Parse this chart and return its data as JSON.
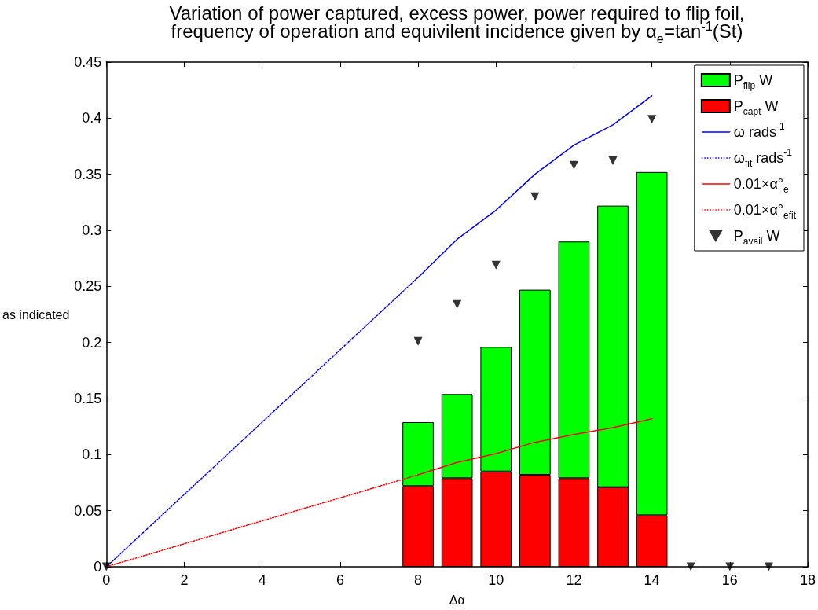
{
  "chart_data": {
    "type": "bar",
    "title": "Variation of power captured, excess power, power required to flip foil,\nfrequency of operation and equivilent incidence given by α$_{e}$=tan$^{-1}$(St)",
    "xlabel": "Δα",
    "ylabel": "as indicated",
    "stacked": true,
    "xlim": [
      0,
      18
    ],
    "xticks": [
      0,
      2,
      4,
      6,
      8,
      10,
      12,
      14,
      16,
      18
    ],
    "ylim": [
      0,
      0.45
    ],
    "yticks": [
      0,
      0.05,
      0.1,
      0.15,
      0.2,
      0.25,
      0.3,
      0.35,
      0.4,
      0.45
    ],
    "grid": false,
    "legend": "top right",
    "series": [
      {
        "name": "P$_{capt}$ W",
        "color": "#ff0000",
        "x": [
          8,
          9,
          10,
          11,
          12,
          13,
          14
        ],
        "values": [
          0.072,
          0.079,
          0.085,
          0.082,
          0.079,
          0.071,
          0.046
        ]
      },
      {
        "name": "P$_{flip}$ W",
        "color": "#00ff00",
        "x": [
          8,
          9,
          10,
          11,
          12,
          13,
          14
        ],
        "values": [
          0.057,
          0.075,
          0.111,
          0.165,
          0.211,
          0.251,
          0.306
        ]
      },
      {
        "name": "ω rads$^{-1}$",
        "type": "line",
        "color": "#0000ff",
        "x": [
          8,
          9,
          10,
          11,
          12,
          13,
          14
        ],
        "values": [
          0.258,
          0.292,
          0.318,
          0.35,
          0.376,
          0.394,
          0.42
        ],
        "line_style": "solid",
        "marker": "none"
      },
      {
        "name": "ω$_{fit}$ rads$^{-1}$",
        "type": "line",
        "color": "#0000ff",
        "x": [
          0,
          8
        ],
        "values": [
          0,
          0.258
        ],
        "line_style": "dotted",
        "marker": "none"
      },
      {
        "name": "0.01×α°$_{e}$",
        "type": "line",
        "color": "#ff0000",
        "x": [
          8,
          9,
          10,
          11,
          12,
          13,
          14
        ],
        "values": [
          0.082,
          0.093,
          0.101,
          0.111,
          0.118,
          0.124,
          0.132
        ],
        "line_style": "solid",
        "marker": "none"
      },
      {
        "name": "0.01×α°$_{efit}$",
        "type": "line",
        "color": "#ff0000",
        "x": [
          0,
          8
        ],
        "values": [
          0,
          0.082
        ],
        "line_style": "dotted",
        "marker": "none"
      },
      {
        "name": "P$_{avail}$ W",
        "type": "scatter",
        "color": "#000000",
        "x": [
          0,
          8,
          9,
          10,
          11,
          12,
          13,
          14,
          15,
          16,
          17
        ],
        "values": [
          0,
          0.201,
          0.234,
          0.269,
          0.33,
          0.358,
          0.362,
          0.399,
          0,
          0,
          0
        ],
        "marker": "triangle"
      }
    ]
  }
}
